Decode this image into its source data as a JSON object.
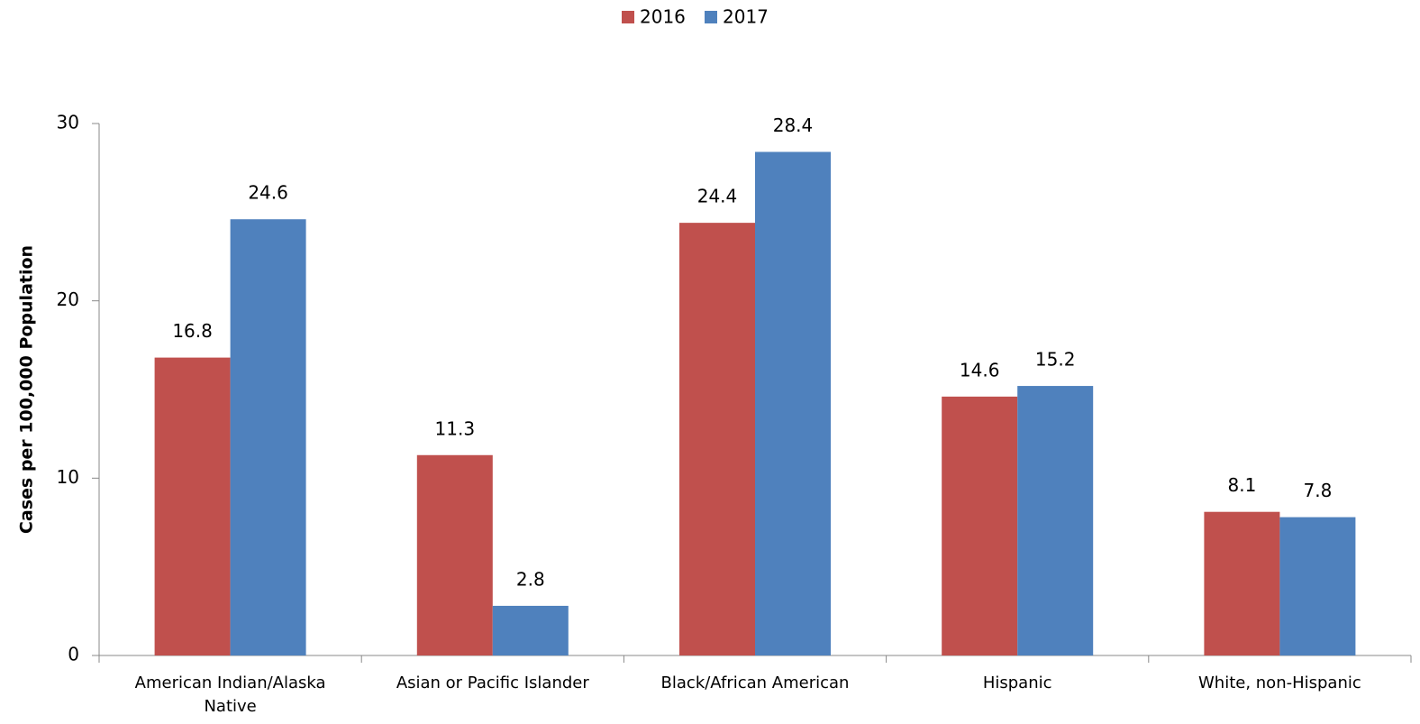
{
  "chart_data": {
    "type": "bar",
    "categories": [
      "American Indian/Alaska Native",
      "Asian or Pacific Islander",
      "Black/African American",
      "Hispanic",
      "White, non-Hispanic"
    ],
    "series": [
      {
        "name": "2016",
        "color": "#c0504d",
        "values": [
          16.8,
          11.3,
          24.4,
          14.6,
          8.1
        ]
      },
      {
        "name": "2017",
        "color": "#4f81bd",
        "values": [
          24.6,
          2.8,
          28.4,
          15.2,
          7.8
        ]
      }
    ],
    "y_label": "Cases per 100,000 Population",
    "ylim": [
      0,
      30
    ],
    "yticks": [
      0,
      10,
      20,
      30
    ],
    "grid": false,
    "legend": "top"
  }
}
